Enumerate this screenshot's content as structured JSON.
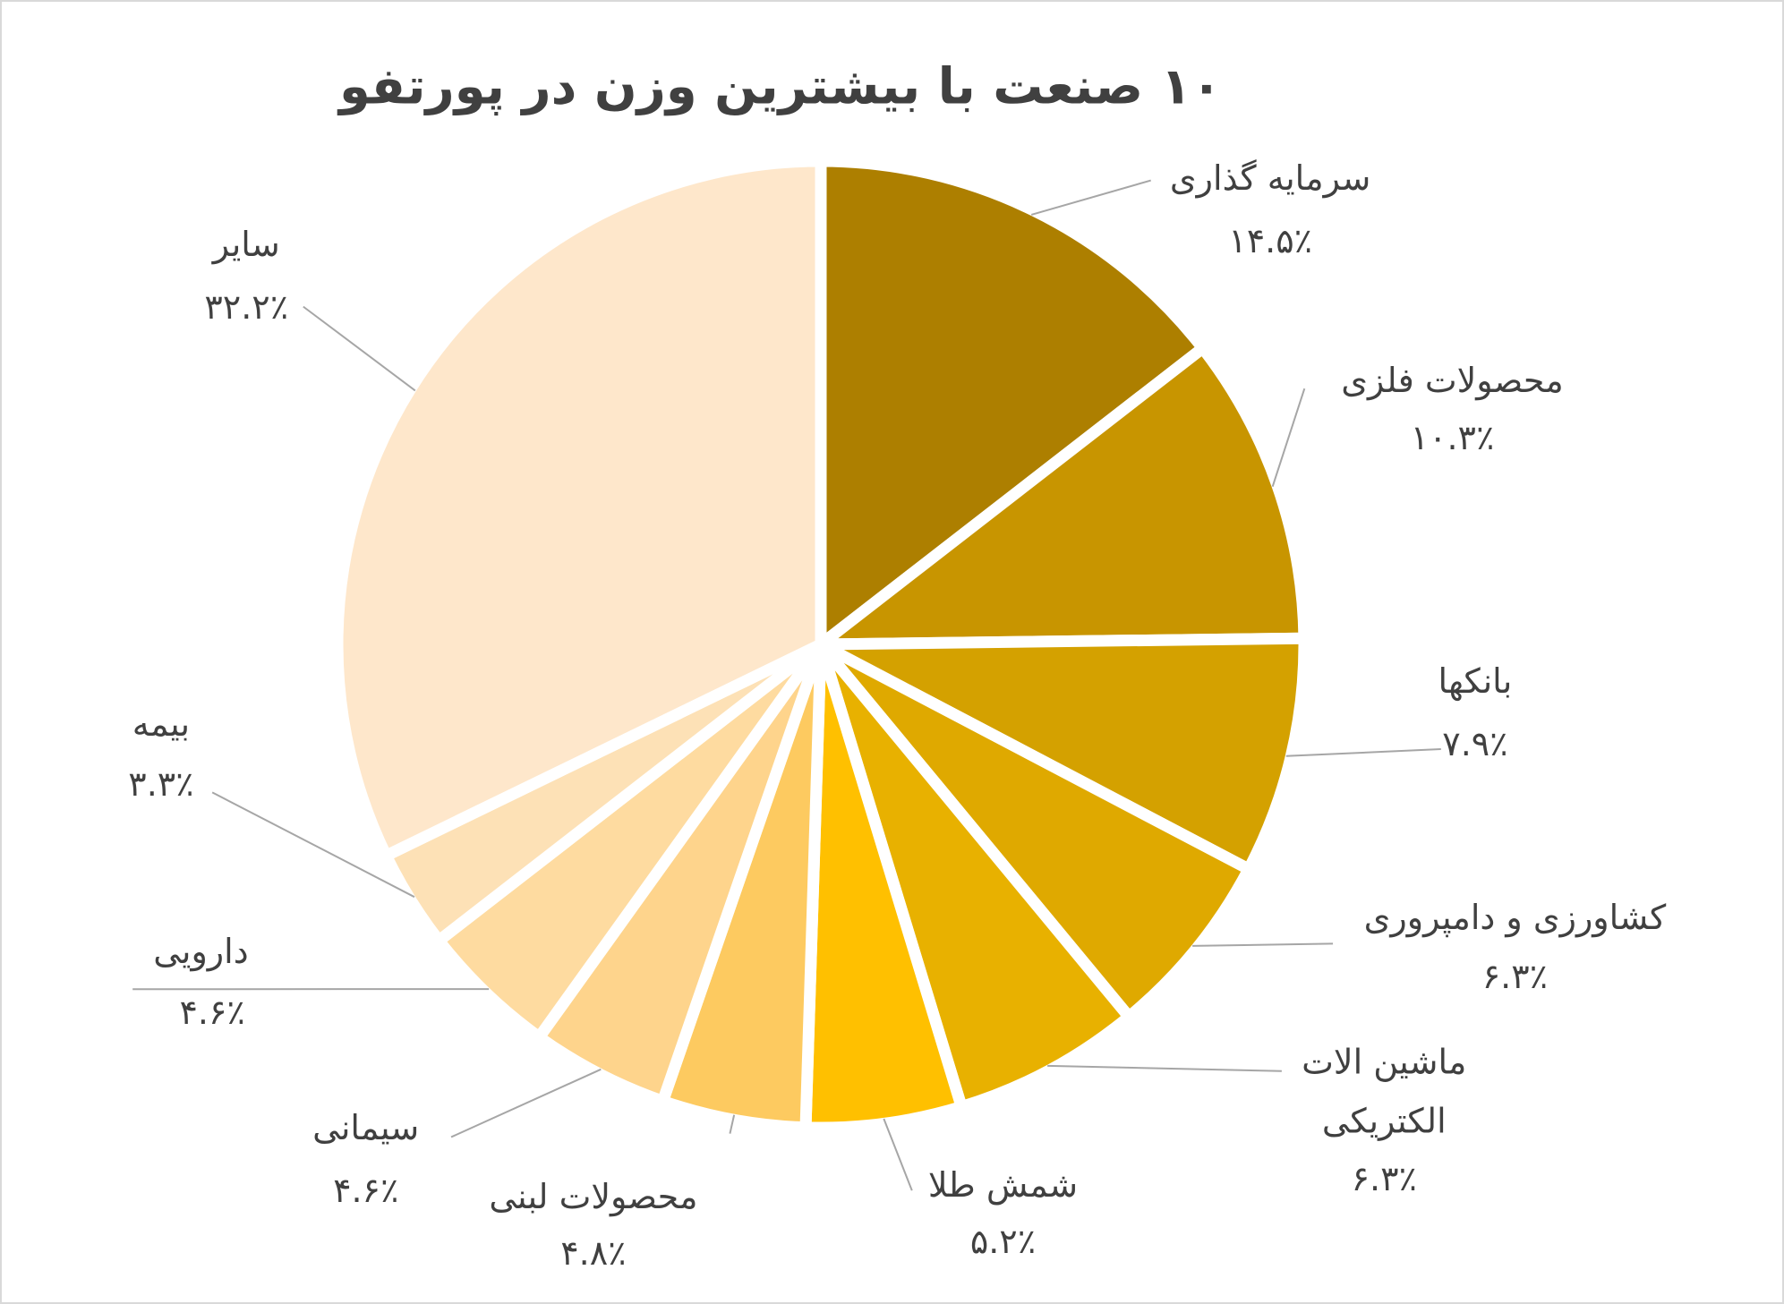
{
  "chart_data": {
    "type": "pie",
    "title": "۱۰ صنعت با بیشترین وزن در پورتفو",
    "categories": [
      "سرمایه گذاری",
      "محصولات فلزی",
      "بانکها",
      "کشاورزی و دامپروری",
      "ماشین الات الکتریکی",
      "شمش طلا",
      "محصولات لبنی",
      "سیمانی",
      "دارویی",
      "بیمه",
      "سایر"
    ],
    "values": [
      14.5,
      10.3,
      7.9,
      6.3,
      6.3,
      5.2,
      4.8,
      4.6,
      4.6,
      3.3,
      32.2
    ],
    "value_labels": [
      "۱۴.۵٪",
      "۱۰.۳٪",
      "۷.۹٪",
      "۶.۳٪",
      "۶.۳٪",
      "۵.۲٪",
      "۴.۸٪",
      "۴.۶٪",
      "۴.۶٪",
      "۳.۳٪",
      "۳۲.۲٪"
    ],
    "colors": [
      "#ad7f00",
      "#c89500",
      "#d4a100",
      "#dfa900",
      "#e8b100",
      "#ffc000",
      "#fdca60",
      "#fed48c",
      "#fedba0",
      "#fde1b6",
      "#fee7cb"
    ]
  }
}
